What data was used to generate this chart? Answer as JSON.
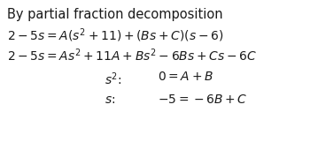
{
  "title": "By partial fraction decomposition",
  "line1": "$2-5s = A(s^2+11)+(Bs+C)(s-6)$",
  "line2": "$2-5s = As^2+11A+Bs^2-6Bs+Cs-6C$",
  "bg_color": "#ffffff",
  "text_color": "#1a1a1a",
  "title_fontsize": 10.5,
  "body_fontsize": 10.0,
  "fig_width": 3.5,
  "fig_height": 1.61,
  "dpi": 100
}
